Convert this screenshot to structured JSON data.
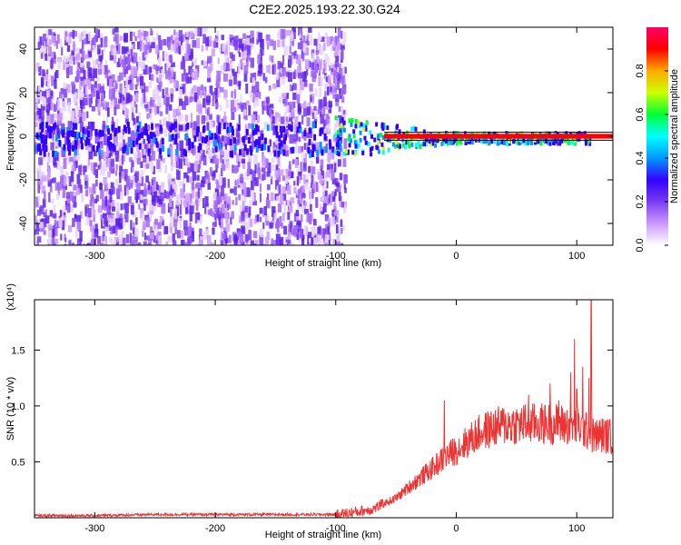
{
  "title": "C2E2.2025.193.22.30.G24",
  "colors": {
    "signal": "#ee3333",
    "background": "#ffffff",
    "axis": "#000000",
    "colorbar_stops": [
      "#ffffff",
      "#cc99ff",
      "#7a3cf0",
      "#3300ff",
      "#0099ff",
      "#00ffff",
      "#00ff33",
      "#ccff00",
      "#ffaa00",
      "#ff0000",
      "#ff0066"
    ]
  },
  "chart_data": [
    {
      "type": "heatmap",
      "xlabel": "Height of straight line (km)",
      "ylabel": "Frequency (Hz)",
      "xlim": [
        -350,
        130
      ],
      "ylim": [
        -50,
        50
      ],
      "xticks": [
        -300,
        -200,
        -100,
        0,
        100
      ],
      "yticks": [
        -40,
        -20,
        0,
        20,
        40
      ],
      "grid": false,
      "colorbar": {
        "label": "Normalized spectral amplitude",
        "range": [
          0,
          1
        ],
        "ticks": [
          "0.0",
          "0.2",
          "0.4",
          "0.6",
          "0.8"
        ]
      },
      "description_values": {
        "noise_region_x": [
          -350,
          -95
        ],
        "signal_band_center_hz": 0,
        "signal_start_x": -105
      }
    },
    {
      "type": "line",
      "xlabel": "Height of straight line (km)",
      "ylabel": "SNR (10 * v/v)",
      "scale_label": "(x10⁴)",
      "xlim": [
        -350,
        130
      ],
      "ylim": [
        0,
        1.95
      ],
      "xticks": [
        -300,
        -200,
        -100,
        0,
        100
      ],
      "yticks": [
        "0.5",
        "1.0",
        "1.5"
      ],
      "grid": false,
      "series": [
        {
          "envelope": {
            "x": [
              -350,
              -300,
              -250,
              -200,
              -150,
              -100,
              -70,
              -50,
              -35,
              -20,
              -10,
              0,
              10,
              20,
              30,
              40,
              60,
              80,
              100,
              110,
              115,
              120,
              130
            ],
            "y": [
              0.02,
              0.02,
              0.03,
              0.03,
              0.03,
              0.03,
              0.08,
              0.18,
              0.32,
              0.45,
              0.55,
              0.62,
              0.7,
              0.78,
              0.82,
              0.85,
              0.86,
              0.86,
              0.84,
              0.78,
              0.74,
              0.76,
              0.74
            ]
          },
          "peaks": [
            {
              "x": -10,
              "y": 1.05
            },
            {
              "x": 60,
              "y": 1.1
            },
            {
              "x": 78,
              "y": 1.2
            },
            {
              "x": 85,
              "y": 1.05
            },
            {
              "x": 95,
              "y": 1.3
            },
            {
              "x": 98,
              "y": 1.6
            },
            {
              "x": 100,
              "y": 1.15
            },
            {
              "x": 105,
              "y": 1.35
            },
            {
              "x": 110,
              "y": 1.25
            },
            {
              "x": 112,
              "y": 1.95
            }
          ]
        }
      ]
    }
  ]
}
